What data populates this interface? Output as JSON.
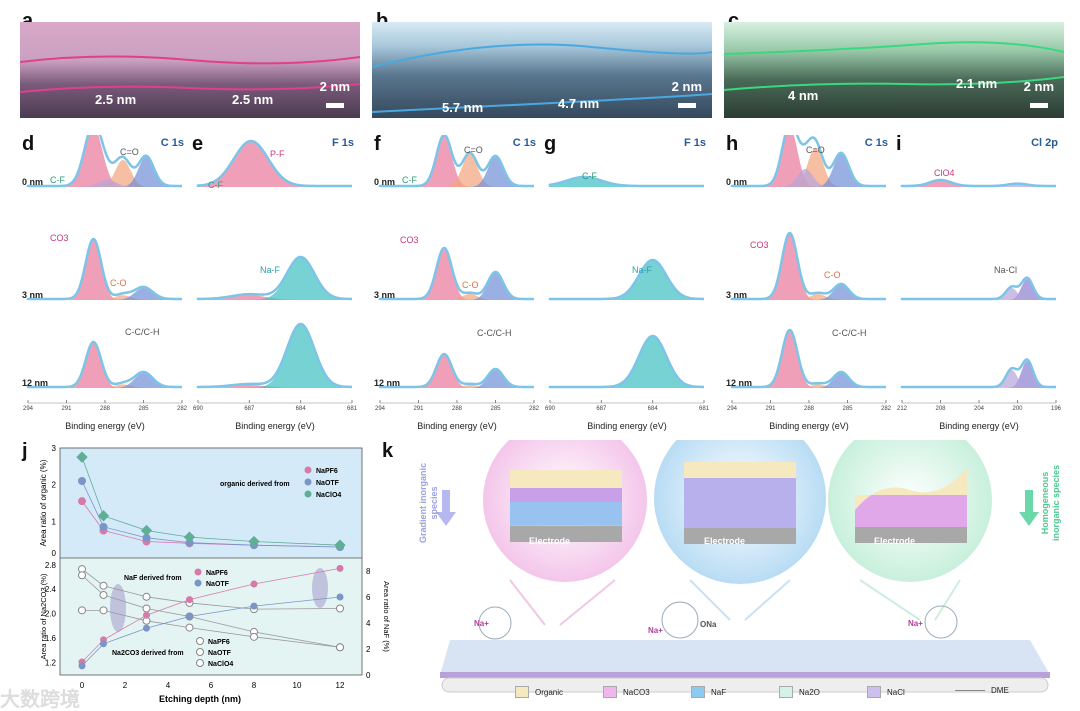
{
  "panels": {
    "a": "a",
    "b": "b",
    "c": "c",
    "d": "d",
    "e": "e",
    "f": "f",
    "g": "g",
    "h": "h",
    "i": "i",
    "j": "j",
    "k": "k"
  },
  "tem": {
    "a": {
      "labels": [
        "2.5 nm",
        "2.5 nm"
      ],
      "scale": "2 nm"
    },
    "b": {
      "labels": [
        "5.7 nm",
        "4.7 nm"
      ],
      "scale": "2 nm"
    },
    "c": {
      "labels": [
        "4 nm",
        "2.1 nm"
      ],
      "scale": "2 nm"
    }
  },
  "xps": [
    {
      "id": "d",
      "title": "C 1s",
      "range": [
        294,
        282
      ],
      "ticks": [
        "294",
        "291",
        "288",
        "285",
        "282"
      ],
      "xlabel": "Binding energy (eV)",
      "rows": [
        "0 nm",
        "3 nm",
        "12 nm"
      ],
      "annotations": [
        "C-F",
        "C=O",
        "CO3",
        "C-O",
        "C-C/C-H"
      ],
      "peaks": [
        [
          [
            288.9,
            1,
            0.7,
            "#e8789a"
          ],
          [
            286.6,
            0.45,
            0.6,
            "#f2a47c"
          ],
          [
            284.8,
            0.5,
            0.6,
            "#6f8fd6"
          ],
          [
            287.8,
            0.12,
            0.7,
            "#b6a4dc"
          ]
        ],
        [
          [
            288.9,
            1,
            0.6,
            "#e8789a"
          ],
          [
            286.6,
            0.08,
            0.6,
            "#f2a47c"
          ],
          [
            285,
            0.2,
            0.7,
            "#6f8fd6"
          ]
        ],
        [
          [
            288.9,
            0.75,
            0.6,
            "#e8789a"
          ],
          [
            286.6,
            0.06,
            0.6,
            "#f2a47c"
          ],
          [
            285,
            0.25,
            0.7,
            "#6f8fd6"
          ]
        ]
      ]
    },
    {
      "id": "e",
      "title": "F 1s",
      "range": [
        690,
        681
      ],
      "ticks": [
        "690",
        "687",
        "684",
        "681"
      ],
      "xlabel": "Binding energy (eV)",
      "rows": [
        "",
        "",
        ""
      ],
      "annotations": [
        "C-F",
        "P-F",
        "Na-F"
      ],
      "peaks": [
        [
          [
            686.9,
            0.75,
            1.0,
            "#e8789a"
          ]
        ],
        [
          [
            687,
            0.08,
            1,
            "#e8789a"
          ],
          [
            684,
            0.7,
            0.8,
            "#3dbfc0"
          ]
        ],
        [
          [
            687,
            0.05,
            1,
            "#e8789a"
          ],
          [
            684,
            1.05,
            0.8,
            "#3dbfc0"
          ]
        ]
      ]
    },
    {
      "id": "f",
      "title": "C 1s",
      "range": [
        294,
        282
      ],
      "ticks": [
        "294",
        "291",
        "288",
        "285",
        "282"
      ],
      "xlabel": "Binding energy (eV)",
      "rows": [
        "0 nm",
        "3 nm",
        "12 nm"
      ],
      "annotations": [
        "C-F",
        "C=O",
        "CO3",
        "C-O",
        "C-C/C-H"
      ],
      "peaks": [
        [
          [
            289,
            0.85,
            0.6,
            "#e8789a"
          ],
          [
            287,
            0.55,
            0.6,
            "#f2a47c"
          ],
          [
            285,
            0.5,
            0.6,
            "#6f8fd6"
          ]
        ],
        [
          [
            289,
            0.85,
            0.6,
            "#e8789a"
          ],
          [
            287,
            0.1,
            0.6,
            "#f2a47c"
          ],
          [
            285,
            0.45,
            0.6,
            "#6f8fd6"
          ]
        ],
        [
          [
            289,
            0.55,
            0.6,
            "#e8789a"
          ],
          [
            287,
            0.05,
            0.6,
            "#f2a47c"
          ],
          [
            285,
            0.3,
            0.6,
            "#6f8fd6"
          ]
        ]
      ]
    },
    {
      "id": "g",
      "title": "F 1s",
      "range": [
        690,
        681
      ],
      "ticks": [
        "690",
        "687",
        "684",
        "681"
      ],
      "xlabel": "Binding energy (eV)",
      "rows": [
        "",
        "",
        ""
      ],
      "annotations": [
        "C-F",
        "Na-F"
      ],
      "peaks": [
        [
          [
            688,
            0.15,
            1,
            "#3dbfc0"
          ]
        ],
        [
          [
            684,
            0.65,
            0.8,
            "#3dbfc0"
          ]
        ],
        [
          [
            684,
            0.85,
            0.8,
            "#3dbfc0"
          ]
        ]
      ]
    },
    {
      "id": "h",
      "title": "C 1s",
      "range": [
        294,
        282
      ],
      "ticks": [
        "294",
        "291",
        "288",
        "285",
        "282"
      ],
      "xlabel": "Binding energy (eV)",
      "rows": [
        "0 nm",
        "3 nm",
        "12 nm"
      ],
      "annotations": [
        "C=O",
        "CO3",
        "C-O",
        "C-C/C-H"
      ],
      "peaks": [
        [
          [
            289.5,
            1,
            0.6,
            "#e8789a"
          ],
          [
            287.5,
            0.65,
            0.6,
            "#f2a47c"
          ],
          [
            285.5,
            0.55,
            0.6,
            "#6f8fd6"
          ],
          [
            288.3,
            0.3,
            0.6,
            "#b6a4dc"
          ]
        ],
        [
          [
            289.5,
            1.1,
            0.6,
            "#e8789a"
          ],
          [
            287.3,
            0.1,
            0.6,
            "#f2a47c"
          ],
          [
            285.5,
            0.25,
            0.6,
            "#6f8fd6"
          ]
        ],
        [
          [
            289.5,
            0.95,
            0.6,
            "#e8789a"
          ],
          [
            287.3,
            0.06,
            0.6,
            "#f2a47c"
          ],
          [
            285.5,
            0.25,
            0.6,
            "#6f8fd6"
          ]
        ]
      ]
    },
    {
      "id": "i",
      "title": "Cl 2p",
      "range": [
        212,
        196
      ],
      "ticks": [
        "212",
        "208",
        "204",
        "200",
        "196"
      ],
      "xlabel": "Binding energy (eV)",
      "rows": [
        "",
        "",
        ""
      ],
      "annotations": [
        "ClO4",
        "Na-Cl"
      ],
      "peaks": [
        [
          [
            208,
            0.1,
            1.1,
            "#e8789a"
          ],
          [
            200,
            0.04,
            1,
            "#b6a4dc"
          ]
        ],
        [
          [
            199,
            0.35,
            0.6,
            "#8a7fd0"
          ],
          [
            200.6,
            0.2,
            0.6,
            "#b6a4dc"
          ]
        ],
        [
          [
            199,
            0.45,
            0.6,
            "#8a7fd0"
          ],
          [
            200.6,
            0.3,
            0.6,
            "#b6a4dc"
          ]
        ]
      ]
    }
  ],
  "chart_data": [
    {
      "type": "line",
      "title": "",
      "xlabel": "Etching depth (nm)",
      "ylabel": "Area ratio of organic (%)",
      "ylim": [
        0,
        3
      ],
      "yticks": [
        "0",
        "1",
        "2",
        "3"
      ],
      "x": [
        0,
        1,
        3,
        5,
        8,
        12
      ],
      "legend_title": "organic derived from",
      "legend": "top-right",
      "series": [
        {
          "name": "NaPF6",
          "color": "#d77aa8",
          "values": [
            1.55,
            0.75,
            0.45,
            0.4,
            0.35,
            0.3
          ]
        },
        {
          "name": "NaOTF",
          "color": "#7a95c8",
          "values": [
            2.1,
            0.85,
            0.55,
            0.42,
            0.35,
            0.3
          ]
        },
        {
          "name": "NaClO4",
          "color": "#5fae96",
          "values": [
            2.75,
            1.15,
            0.75,
            0.57,
            0.45,
            0.35
          ]
        }
      ]
    },
    {
      "type": "line",
      "xlabel": "Etching depth (nm)",
      "ylabel": "Area ratio of Na2CO3 (%)",
      "ylabel_right": "Area ratio of NaF (%)",
      "ylim": [
        1.0,
        2.8
      ],
      "ylim_right": [
        0,
        9
      ],
      "x": [
        0,
        1,
        3,
        5,
        8,
        12
      ],
      "xticks": [
        "0",
        "2",
        "4",
        "6",
        "8",
        "10",
        "12"
      ],
      "yticks": [
        "1.2",
        "1.6",
        "2.0",
        "2.4",
        "2.8"
      ],
      "yticks_right": [
        "0",
        "2",
        "4",
        "6",
        "8"
      ],
      "naf_legend_title": "NaF derived from",
      "na2co3_legend_title": "Na2CO3 derived from",
      "naf_series": [
        {
          "name": "NaPF6",
          "color": "#d77aa8",
          "values": [
            1.0,
            2.7,
            4.6,
            5.8,
            7.0,
            8.2
          ]
        },
        {
          "name": "NaOTF",
          "color": "#7a95c8",
          "values": [
            0.7,
            2.4,
            3.6,
            4.5,
            5.3,
            6.0
          ]
        }
      ],
      "na2co3_series": [
        {
          "name": "NaPF6",
          "values": [
            2.72,
            2.45,
            2.27,
            2.17,
            2.07,
            2.08
          ]
        },
        {
          "name": "NaOTF",
          "values": [
            2.62,
            2.3,
            2.08,
            1.95,
            1.7,
            1.45
          ]
        },
        {
          "name": "NaClO4",
          "values": [
            2.05,
            2.05,
            1.88,
            1.77,
            1.62,
            1.45
          ]
        }
      ]
    }
  ],
  "k": {
    "electrode": "Electrode",
    "left_label": "Gradient inorganic species",
    "right_label": "Homogeneous inorganic species",
    "na_plus": "Na+",
    "ona": "ONa",
    "legend": [
      {
        "label": "Organic",
        "color": "#f6e8bf"
      },
      {
        "label": "NaCO3",
        "color": "#f2b6ee"
      },
      {
        "label": "NaF",
        "color": "#8ccaf0"
      },
      {
        "label": "Na2O",
        "color": "#d6f2e8"
      },
      {
        "label": "NaCl",
        "color": "#cdbfee"
      },
      {
        "label": "DME",
        "color": ""
      }
    ]
  },
  "watermark": "大数跨境"
}
